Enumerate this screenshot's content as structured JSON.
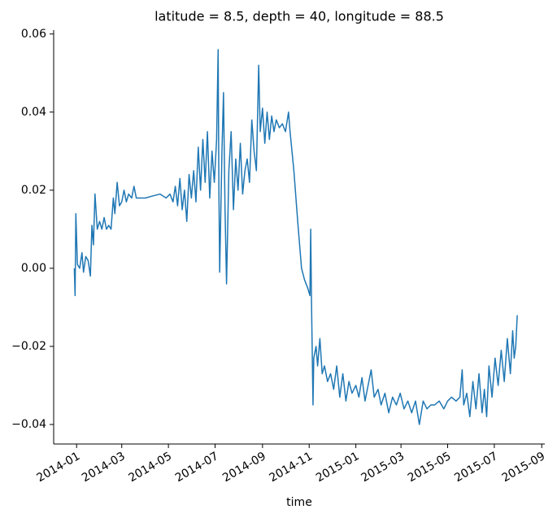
{
  "chart_data": {
    "type": "line",
    "title": "latitude = 8.5, depth = 40, longitude = 88.5",
    "x_label": "time",
    "color": "#1f77b4",
    "xlim": [
      "2013-12-02",
      "2015-09-05"
    ],
    "ylim": [
      -0.045,
      0.061
    ],
    "xticks": [
      "2014-01",
      "2014-03",
      "2014-05",
      "2014-07",
      "2014-09",
      "2014-11",
      "2015-01",
      "2015-03",
      "2015-05",
      "2015-07",
      "2015-09"
    ],
    "yticks": [
      {
        "value": -0.04,
        "label": "−0.04"
      },
      {
        "value": -0.02,
        "label": "−0.02"
      },
      {
        "value": 0,
        "label": "0.00"
      },
      0.02,
      0.04,
      0.06
    ],
    "x": [
      "2013-12-29",
      "2013-12-30",
      "2013-12-31",
      "2014-01-02",
      "2014-01-05",
      "2014-01-08",
      "2014-01-10",
      "2014-01-13",
      "2014-01-16",
      "2014-01-19",
      "2014-01-21",
      "2014-01-23",
      "2014-01-25",
      "2014-01-28",
      "2014-01-31",
      "2014-02-03",
      "2014-02-06",
      "2014-02-09",
      "2014-02-12",
      "2014-02-15",
      "2014-02-18",
      "2014-02-20",
      "2014-02-23",
      "2014-02-26",
      "2014-03-01",
      "2014-03-04",
      "2014-03-07",
      "2014-03-10",
      "2014-03-14",
      "2014-03-17",
      "2014-03-20",
      "2014-03-25",
      "2014-04-01",
      "2014-04-10",
      "2014-04-20",
      "2014-04-28",
      "2014-05-03",
      "2014-05-07",
      "2014-05-10",
      "2014-05-13",
      "2014-05-16",
      "2014-05-19",
      "2014-05-22",
      "2014-05-25",
      "2014-05-28",
      "2014-05-31",
      "2014-06-03",
      "2014-06-06",
      "2014-06-09",
      "2014-06-12",
      "2014-06-15",
      "2014-06-18",
      "2014-06-21",
      "2014-06-24",
      "2014-06-27",
      "2014-06-30",
      "2014-07-03",
      "2014-07-05",
      "2014-07-06",
      "2014-07-07",
      "2014-07-10",
      "2014-07-12",
      "2014-07-14",
      "2014-07-16",
      "2014-07-19",
      "2014-07-22",
      "2014-07-25",
      "2014-07-28",
      "2014-07-31",
      "2014-08-03",
      "2014-08-06",
      "2014-08-09",
      "2014-08-12",
      "2014-08-15",
      "2014-08-18",
      "2014-08-21",
      "2014-08-24",
      "2014-08-27",
      "2014-08-29",
      "2014-09-01",
      "2014-09-04",
      "2014-09-07",
      "2014-09-10",
      "2014-09-13",
      "2014-09-16",
      "2014-09-19",
      "2014-09-23",
      "2014-09-27",
      "2014-10-01",
      "2014-10-05",
      "2014-10-07",
      "2014-10-12",
      "2014-10-17",
      "2014-10-22",
      "2014-10-26",
      "2014-10-30",
      "2014-11-02",
      "2014-11-03",
      "2014-11-04",
      "2014-11-06",
      "2014-11-07",
      "2014-11-10",
      "2014-11-12",
      "2014-11-15",
      "2014-11-18",
      "2014-11-21",
      "2014-11-25",
      "2014-11-29",
      "2014-12-03",
      "2014-12-07",
      "2014-12-11",
      "2014-12-15",
      "2014-12-19",
      "2014-12-23",
      "2014-12-27",
      "2015-01-01",
      "2015-01-05",
      "2015-01-09",
      "2015-01-13",
      "2015-01-17",
      "2015-01-21",
      "2015-01-25",
      "2015-01-30",
      "2015-02-03",
      "2015-02-08",
      "2015-02-13",
      "2015-02-18",
      "2015-02-23",
      "2015-02-28",
      "2015-03-05",
      "2015-03-10",
      "2015-03-15",
      "2015-03-20",
      "2015-03-25",
      "2015-03-30",
      "2015-04-04",
      "2015-04-09",
      "2015-04-14",
      "2015-04-20",
      "2015-04-26",
      "2015-05-01",
      "2015-05-06",
      "2015-05-12",
      "2015-05-17",
      "2015-05-20",
      "2015-05-22",
      "2015-05-26",
      "2015-05-30",
      "2015-06-03",
      "2015-06-07",
      "2015-06-11",
      "2015-06-15",
      "2015-06-18",
      "2015-06-21",
      "2015-06-24",
      "2015-06-28",
      "2015-07-02",
      "2015-07-06",
      "2015-07-10",
      "2015-07-14",
      "2015-07-18",
      "2015-07-22",
      "2015-07-25",
      "2015-07-27",
      "2015-07-29",
      "2015-07-31"
    ],
    "values": [
      0.0,
      -0.007,
      0.014,
      0.001,
      0.0,
      0.004,
      -0.001,
      0.003,
      0.002,
      -0.002,
      0.011,
      0.006,
      0.019,
      0.01,
      0.012,
      0.01,
      0.013,
      0.01,
      0.011,
      0.01,
      0.018,
      0.014,
      0.022,
      0.016,
      0.017,
      0.02,
      0.017,
      0.019,
      0.018,
      0.021,
      0.018,
      0.018,
      0.018,
      0.0185,
      0.019,
      0.018,
      0.019,
      0.017,
      0.021,
      0.016,
      0.023,
      0.015,
      0.02,
      0.012,
      0.024,
      0.018,
      0.025,
      0.017,
      0.031,
      0.02,
      0.033,
      0.022,
      0.035,
      0.018,
      0.03,
      0.022,
      0.033,
      0.056,
      0.02,
      -0.001,
      0.03,
      0.045,
      0.015,
      -0.004,
      0.025,
      0.035,
      0.015,
      0.028,
      0.02,
      0.032,
      0.019,
      0.025,
      0.028,
      0.022,
      0.038,
      0.03,
      0.025,
      0.052,
      0.035,
      0.041,
      0.032,
      0.04,
      0.033,
      0.039,
      0.035,
      0.038,
      0.036,
      0.037,
      0.035,
      0.04,
      0.035,
      0.025,
      0.012,
      0.0,
      -0.003,
      -0.005,
      -0.007,
      0.01,
      -0.008,
      -0.035,
      -0.023,
      -0.02,
      -0.025,
      -0.018,
      -0.027,
      -0.025,
      -0.029,
      -0.027,
      -0.031,
      -0.025,
      -0.033,
      -0.027,
      -0.034,
      -0.029,
      -0.032,
      -0.03,
      -0.033,
      -0.028,
      -0.034,
      -0.03,
      -0.026,
      -0.033,
      -0.031,
      -0.035,
      -0.032,
      -0.037,
      -0.033,
      -0.035,
      -0.032,
      -0.036,
      -0.034,
      -0.037,
      -0.034,
      -0.04,
      -0.034,
      -0.036,
      -0.035,
      -0.035,
      -0.034,
      -0.036,
      -0.034,
      -0.033,
      -0.034,
      -0.033,
      -0.026,
      -0.035,
      -0.032,
      -0.038,
      -0.029,
      -0.036,
      -0.027,
      -0.037,
      -0.031,
      -0.038,
      -0.025,
      -0.033,
      -0.023,
      -0.03,
      -0.021,
      -0.029,
      -0.018,
      -0.027,
      -0.016,
      -0.023,
      -0.02,
      -0.012
    ]
  }
}
